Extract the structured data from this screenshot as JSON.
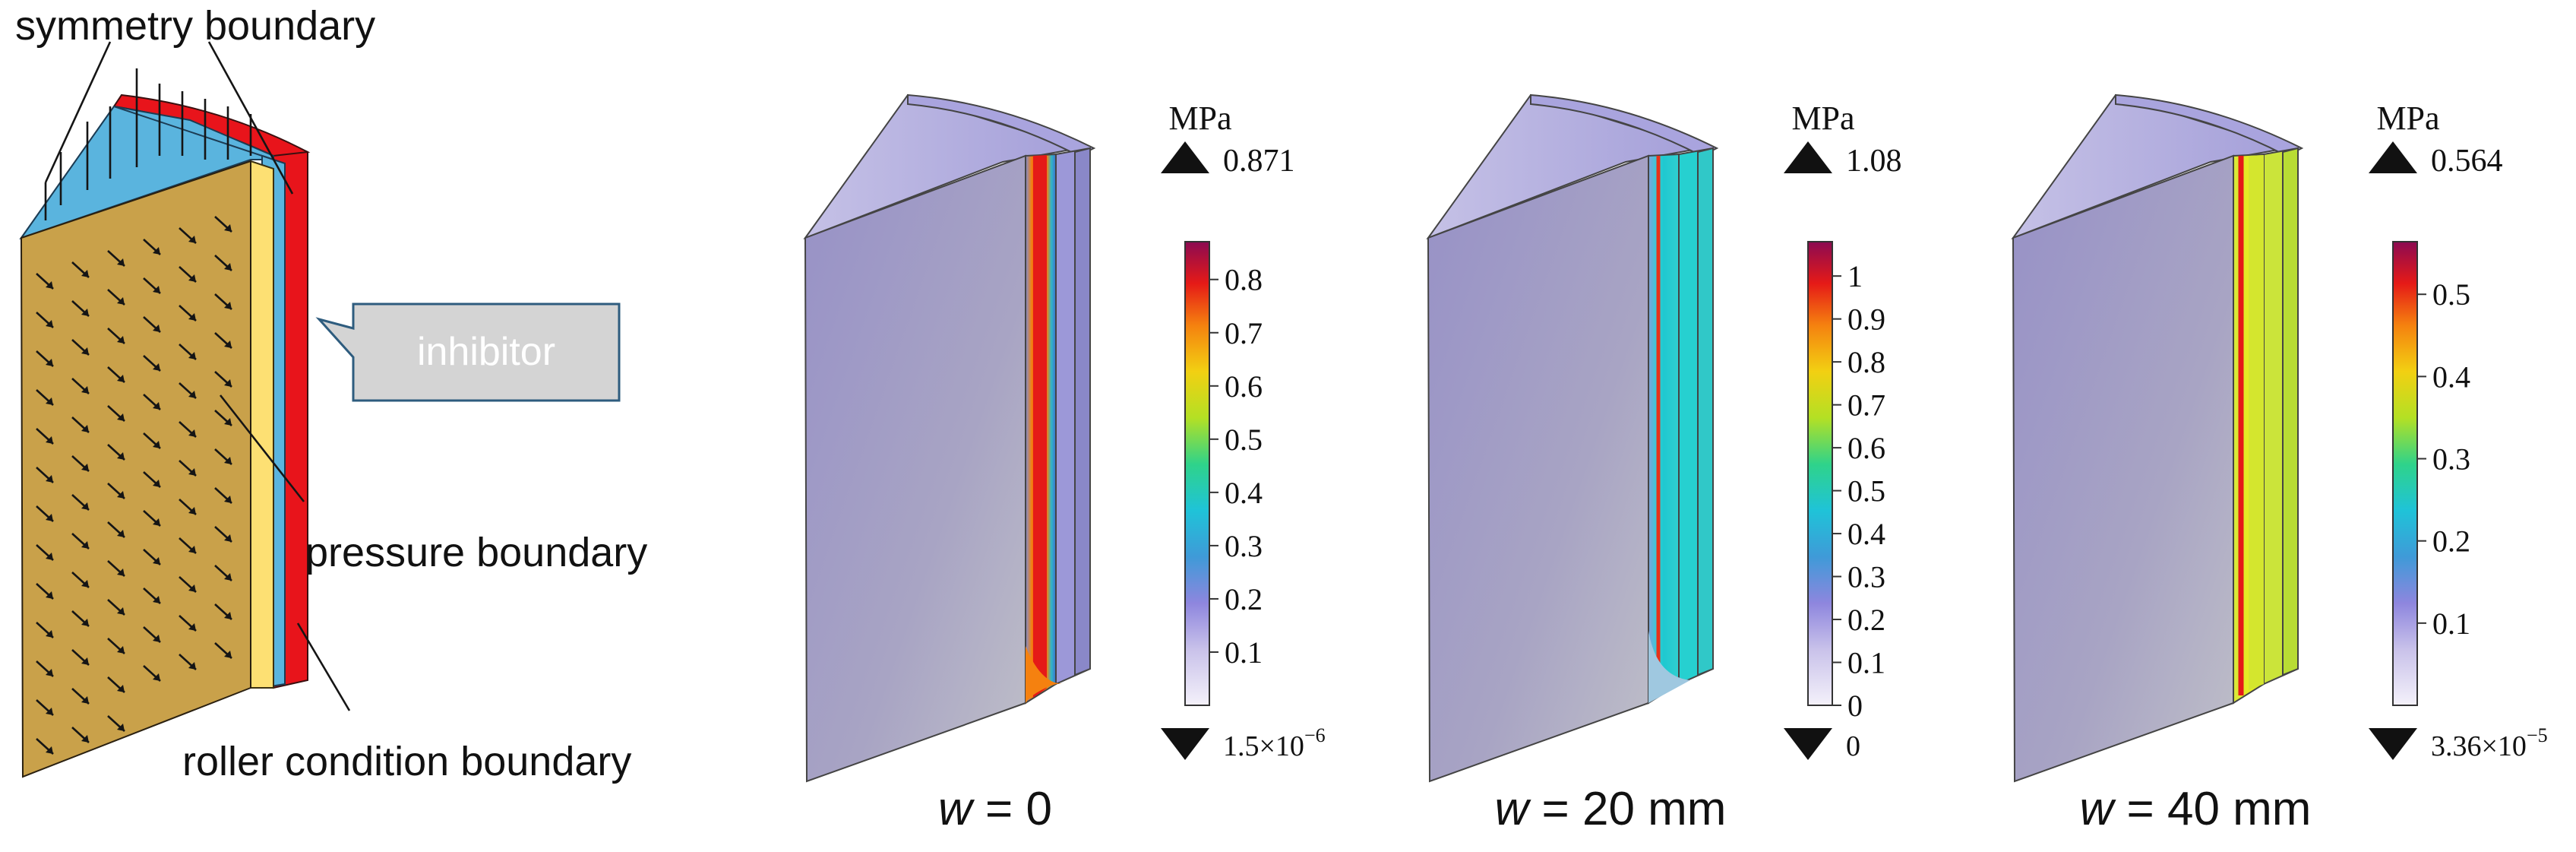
{
  "schematic": {
    "labels": {
      "symmetry": "symmetry boundary",
      "inhibitor": "inhibitor",
      "pressure": "pressure boundary",
      "roller": "roller condition boundary"
    }
  },
  "results": [
    {
      "caption_var": "w",
      "caption_eq": " = 0",
      "unit": "MPa",
      "max_label": "0.871",
      "min_base": "1.5×10",
      "min_exp": "−6",
      "ticks": [
        "0.1",
        "0.2",
        "0.3",
        "0.4",
        "0.5",
        "0.6",
        "0.7",
        "0.8"
      ],
      "max_value": 0.871,
      "field": "high stress concentrated in narrow band along inner wall"
    },
    {
      "caption_var": "w",
      "caption_eq": " = 20 mm",
      "unit": "MPa",
      "max_label": "1.08",
      "min_base": "0",
      "min_exp": "",
      "ticks": [
        "0",
        "0.1",
        "0.2",
        "0.3",
        "0.4",
        "0.5",
        "0.6",
        "0.7",
        "0.8",
        "0.9",
        "1"
      ],
      "max_value": 1.08,
      "field": "thin high-stress line in slot, cyan band around"
    },
    {
      "caption_var": "w",
      "caption_eq": " = 40 mm",
      "unit": "MPa",
      "max_label": "0.564",
      "min_base": "3.36×10",
      "min_exp": "−5",
      "ticks": [
        "0.1",
        "0.2",
        "0.3",
        "0.4",
        "0.5"
      ],
      "max_value": 0.564,
      "field": "yellow band across inhibitor with red line at slot"
    }
  ],
  "colors": {
    "propellant_face": "#C9A14A",
    "top_face": "#5AB4DE",
    "inhibitor_red": "#E8141B",
    "callout_fill": "#D4D4D4",
    "callout_stroke": "#2E5C7E",
    "low_stress": "#9C98C6"
  }
}
